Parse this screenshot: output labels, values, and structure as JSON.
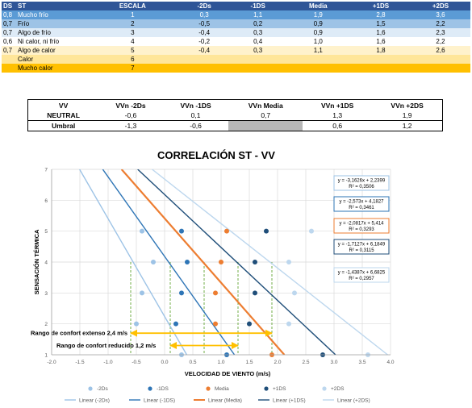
{
  "table": {
    "headers": [
      "DS",
      "ST",
      "ESCALA",
      "-2Ds",
      "-1DS",
      "Media",
      "+1DS",
      "+2DS"
    ],
    "rows": [
      {
        "ds": "0,8",
        "st": "Mucho frío",
        "escala": "1",
        "c": [
          "0,3",
          "1,1",
          "1,9",
          "2,8",
          "3,6"
        ],
        "bg": "#5b9bd5",
        "fg": "#ffffff"
      },
      {
        "ds": "0,7",
        "st": "Frío",
        "escala": "2",
        "c": [
          "-0,5",
          "0,2",
          "0,9",
          "1,5",
          "2,2"
        ],
        "bg": "#9dc3e6",
        "fg": "#000000"
      },
      {
        "ds": "0,7",
        "st": "Algo de frío",
        "escala": "3",
        "c": [
          "-0,4",
          "0,3",
          "0,9",
          "1,6",
          "2,3"
        ],
        "bg": "#deebf7",
        "fg": "#000000"
      },
      {
        "ds": "0,6",
        "st": "Ni calor, ni frío",
        "escala": "4",
        "c": [
          "-0,2",
          "0,4",
          "1,0",
          "1,6",
          "2,2"
        ],
        "bg": "#ffffff",
        "fg": "#000000"
      },
      {
        "ds": "0,7",
        "st": "Algo de calor",
        "escala": "5",
        "c": [
          "-0,4",
          "0,3",
          "1,1",
          "1,8",
          "2,6"
        ],
        "bg": "#fff2cc",
        "fg": "#000000"
      },
      {
        "ds": "",
        "st": "Calor",
        "escala": "6",
        "c": [
          "",
          "",
          "",
          "",
          ""
        ],
        "bg": "#ffe699",
        "fg": "#000000"
      },
      {
        "ds": "",
        "st": "Mucho calor",
        "escala": "7",
        "c": [
          "",
          "",
          "",
          "",
          ""
        ],
        "bg": "#ffc000",
        "fg": "#000000"
      }
    ]
  },
  "vv_table": {
    "headers": [
      "VV",
      "VVn -2Ds",
      "VVn -1DS",
      "VVn Media",
      "VVn +1DS",
      "VVn +2DS"
    ],
    "neutral": {
      "label": "NEUTRAL",
      "values": [
        "-0,6",
        "0,1",
        "0,7",
        "1,3",
        "1,9"
      ]
    },
    "umbral": {
      "label": "Umbral",
      "values": [
        "-1,3",
        "-0,6",
        "",
        "0,6",
        "1,2"
      ]
    }
  },
  "chart_data": {
    "type": "scatter",
    "title": "CORRELACIÓN ST - VV",
    "xlabel": "VELOCIDAD DE VIENTO (m/s)",
    "ylabel": "SENSACIÓN TÉRMICA",
    "xlim": [
      -2.0,
      4.0
    ],
    "ylim": [
      1,
      7
    ],
    "x_ticks": [
      "-2.0",
      "-1.5",
      "-1.0",
      "-0.5",
      "0.0",
      "0.5",
      "1.0",
      "1.5",
      "2.0",
      "2.5",
      "3.0",
      "3.5",
      "4.0"
    ],
    "y_ticks": [
      "1",
      "2",
      "3",
      "4",
      "5",
      "6",
      "7"
    ],
    "grid": true,
    "series": [
      {
        "name": "-2Ds",
        "color": "#9dc3e6",
        "points": [
          [
            0.3,
            1
          ],
          [
            -0.5,
            2
          ],
          [
            -0.4,
            3
          ],
          [
            -0.2,
            4
          ],
          [
            -0.4,
            5
          ]
        ],
        "trend": {
          "m": -3.1626,
          "b": 2.2399
        },
        "eq": "y = -3,1626x + 2,2399",
        "r2": "R² = 0,3506"
      },
      {
        "name": "-1DS",
        "color": "#2e75b6",
        "points": [
          [
            1.1,
            1
          ],
          [
            0.2,
            2
          ],
          [
            0.3,
            3
          ],
          [
            0.4,
            4
          ],
          [
            0.3,
            5
          ]
        ],
        "trend": {
          "m": -2.573,
          "b": 4.1827
        },
        "eq": "y = -2,573x + 4,1827",
        "r2": "R² = 0,3461"
      },
      {
        "name": "Media",
        "color": "#ed7d31",
        "points": [
          [
            1.9,
            1
          ],
          [
            0.9,
            2
          ],
          [
            0.9,
            3
          ],
          [
            1.0,
            4
          ],
          [
            1.1,
            5
          ]
        ],
        "trend": {
          "m": -2.0817,
          "b": 5.414
        },
        "eq": "y = -2,0817x + 5,414",
        "r2": "R² = 0,3293"
      },
      {
        "name": "+1DS",
        "color": "#1f4e79",
        "points": [
          [
            2.8,
            1
          ],
          [
            1.5,
            2
          ],
          [
            1.6,
            3
          ],
          [
            1.6,
            4
          ],
          [
            1.8,
            5
          ]
        ],
        "trend": {
          "m": -1.7127,
          "b": 6.1849
        },
        "eq": "y = -1,7127x + 6,1849",
        "r2": "R² = 0,3115"
      },
      {
        "name": "+2DS",
        "color": "#bdd7ee",
        "points": [
          [
            3.6,
            1
          ],
          [
            2.2,
            2
          ],
          [
            2.3,
            3
          ],
          [
            2.2,
            4
          ],
          [
            2.6,
            5
          ]
        ],
        "trend": {
          "m": -1.4387,
          "b": 6.6825
        },
        "eq": "y = -1,4387x + 6,6825",
        "r2": "R² = 0,2957"
      }
    ],
    "legend_markers": [
      "-2Ds",
      "-1DS",
      "Media",
      "+1DS",
      "+2DS"
    ],
    "legend_lines": [
      "Linear (-2Ds)",
      "Linear (-1DS)",
      "Linear (Media)",
      "Linear (+1DS)",
      "Linear (+2DS)"
    ],
    "neutral_lines": [
      -0.6,
      0.1,
      0.7,
      1.3,
      1.9
    ],
    "comfort_ranges": [
      {
        "label": "Rango de confort extenso 2,4 m/s",
        "from": -0.6,
        "to": 1.9,
        "y": 1.7
      },
      {
        "label": "Rango de confort reducido 1,2 m/s",
        "from": 0.1,
        "to": 1.3,
        "y": 1.3
      }
    ]
  }
}
